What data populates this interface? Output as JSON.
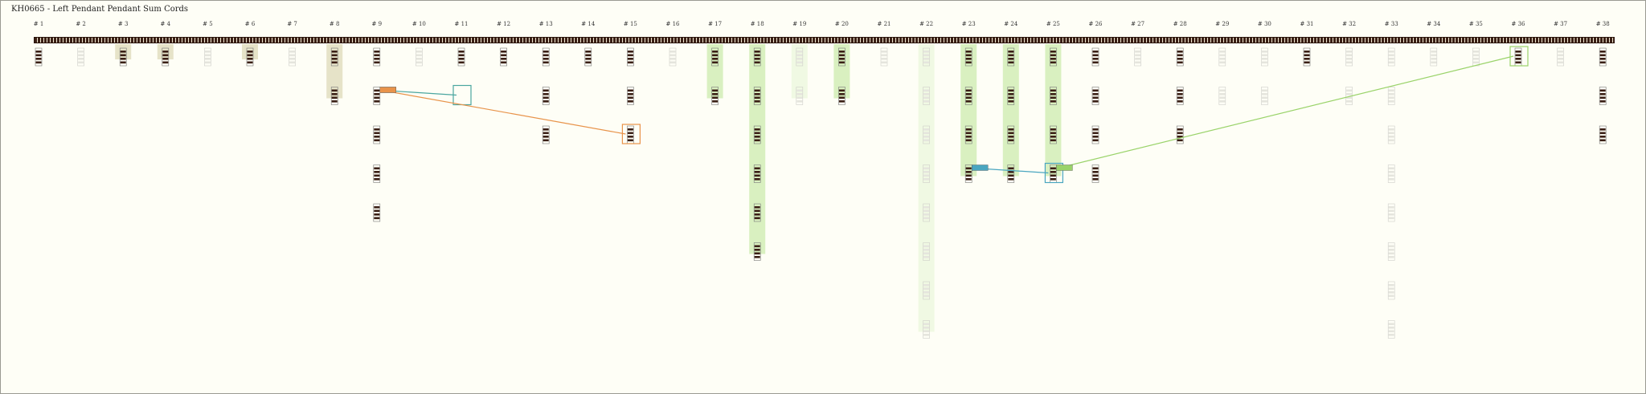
{
  "title": "KH0665 - Left Pendant Pendant Sum Cords",
  "pendants": [
    {
      "label": "# 1",
      "dim": false,
      "band": "none",
      "levels": 1
    },
    {
      "label": "# 2",
      "dim": true,
      "band": "none",
      "levels": 1
    },
    {
      "label": "# 3",
      "dim": false,
      "band": "tan",
      "levels": 1
    },
    {
      "label": "# 4",
      "dim": false,
      "band": "tan",
      "levels": 1
    },
    {
      "label": "# 5",
      "dim": true,
      "band": "none",
      "levels": 1
    },
    {
      "label": "# 6",
      "dim": false,
      "band": "tan",
      "levels": 1
    },
    {
      "label": "# 7",
      "dim": true,
      "band": "none",
      "levels": 1
    },
    {
      "label": "# 8",
      "dim": false,
      "band": "tan",
      "levels": 2
    },
    {
      "label": "# 9",
      "dim": false,
      "band": "none",
      "levels": 5
    },
    {
      "label": "# 10",
      "dim": true,
      "band": "none",
      "levels": 1
    },
    {
      "label": "# 11",
      "dim": false,
      "band": "none",
      "levels": 1
    },
    {
      "label": "# 12",
      "dim": false,
      "band": "none",
      "levels": 1
    },
    {
      "label": "# 13",
      "dim": false,
      "band": "none",
      "levels": 3
    },
    {
      "label": "# 14",
      "dim": false,
      "band": "none",
      "levels": 1
    },
    {
      "label": "# 15",
      "dim": false,
      "band": "none",
      "levels": 3
    },
    {
      "label": "# 16",
      "dim": true,
      "band": "none",
      "levels": 1
    },
    {
      "label": "# 17",
      "dim": false,
      "band": "green",
      "levels": 2
    },
    {
      "label": "# 18",
      "dim": false,
      "band": "green",
      "levels": 6
    },
    {
      "label": "# 19",
      "dim": true,
      "band": "green",
      "levels": 2
    },
    {
      "label": "# 20",
      "dim": false,
      "band": "green",
      "levels": 2
    },
    {
      "label": "# 21",
      "dim": true,
      "band": "none",
      "levels": 1
    },
    {
      "label": "# 22",
      "dim": true,
      "band": "green",
      "levels": 8
    },
    {
      "label": "# 23",
      "dim": false,
      "band": "green",
      "levels": 4
    },
    {
      "label": "# 24",
      "dim": false,
      "band": "green",
      "levels": 4
    },
    {
      "label": "# 25",
      "dim": false,
      "band": "green",
      "levels": 4
    },
    {
      "label": "# 26",
      "dim": false,
      "band": "none",
      "levels": 4
    },
    {
      "label": "# 27",
      "dim": true,
      "band": "none",
      "levels": 1
    },
    {
      "label": "# 28",
      "dim": false,
      "band": "none",
      "levels": 3
    },
    {
      "label": "# 29",
      "dim": true,
      "band": "none",
      "levels": 2
    },
    {
      "label": "# 30",
      "dim": true,
      "band": "none",
      "levels": 2
    },
    {
      "label": "# 31",
      "dim": false,
      "band": "none",
      "levels": 1
    },
    {
      "label": "# 32",
      "dim": true,
      "band": "none",
      "levels": 2
    },
    {
      "label": "# 33",
      "dim": true,
      "band": "none",
      "levels": 8
    },
    {
      "label": "# 34",
      "dim": true,
      "band": "none",
      "levels": 1
    },
    {
      "label": "# 35",
      "dim": true,
      "band": "none",
      "levels": 1
    },
    {
      "label": "# 36",
      "dim": false,
      "band": "none",
      "levels": 1
    },
    {
      "label": "# 37",
      "dim": true,
      "band": "none",
      "levels": 1
    },
    {
      "label": "# 38",
      "dim": false,
      "band": "none",
      "levels": 3
    }
  ],
  "sum_links": [
    {
      "from_pendant": 9,
      "from_level": 2,
      "to_pendant": 11,
      "to_level": 2,
      "color": "#4aa6a0"
    },
    {
      "from_pendant": 9,
      "from_level": 2,
      "to_pendant": 15,
      "to_level": 3,
      "color": "#e8934a"
    },
    {
      "from_pendant": 23,
      "from_level": 4,
      "to_pendant": 25,
      "to_level": 4,
      "color": "#4aa6c0"
    },
    {
      "from_pendant": 25,
      "from_level": 4,
      "to_pendant": 36,
      "to_level": 1,
      "color": "#9ad36a"
    }
  ],
  "colors": {
    "background": "#fefef6",
    "cord_dark": "#3a1f15",
    "tan_band": "#e6e3c8",
    "green_band": "#d9f0c0"
  }
}
